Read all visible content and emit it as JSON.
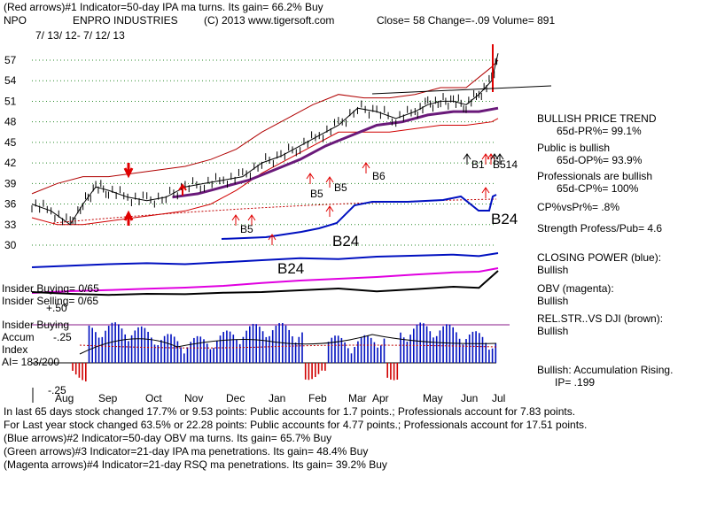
{
  "header": {
    "line1": "(Red arrows)#1 Indicator=50-day IPA ma turns.  Its gain= 66.2% Buy",
    "ticker": "NPO",
    "company": "ENPRO INDUSTRIES",
    "copyright": "(C) 2013 www.tigersoft.com",
    "quote": "Close=  58  Change=-.09 Volume= 891",
    "date_range": "7/ 13/ 12-  7/ 12/ 13"
  },
  "side_panel": {
    "trend_title": "BULLISH PRICE TREND",
    "pr": "65d-PR%= 99.1%",
    "public": "Public is bullish",
    "op": "65d-OP%= 93.9%",
    "pros": "Professionals are bullish",
    "cp": "65d-CP%= 100%",
    "cpvspr": "CP%vsPr%=  .8%",
    "strength": "Strength Profess/Pub= 4.6",
    "closing_power": "CLOSING POWER (blue):",
    "closing_power_val": "Bullish",
    "obv": "OBV (magenta):",
    "obv_val": "Bullish",
    "relstr": "REL.STR..VS DJI (brown):",
    "relstr_val": "Bullish",
    "accum": "Bullish: Accumulation Rising.",
    "ip": "IP=  .199"
  },
  "panel_labels": {
    "insider_buying": "Insider Buying= 0/65",
    "insider_selling": "Insider Selling= 0/65",
    "plus50": "+.50",
    "insider_buying2": "Insider Buying",
    "accum": "Accum",
    "minus25_top": "-.25",
    "index": "Index",
    "ai": "AI= 183/200",
    "minus25_bottom": "-.25"
  },
  "footer": {
    "line1": "In last 65 days stock changed  17.7% or  9.53 points:  Public accounts for  1.7 points.;  Professionals account for  7.83 points.",
    "line2": "For Last year stock changed  63.5% or  22.28 points:  Public accounts for  4.77 points.;  Professionals account for  17.51 points.",
    "line3": "(Blue arrows)#2 Indicator=50-day OBV ma turns.  Its gain= 65.7% Buy",
    "line4": "(Green arrows)#3 Indicator=21-day IPA ma penetrations.  Its gain= 48.4% Buy",
    "line5": "(Magenta arrows)#4 Indicator=21-day RSQ ma penetrations.  Its gain= 39.2% Buy"
  },
  "chart_data": {
    "type": "line",
    "title": "NPO ENPRO INDUSTRIES",
    "y_ticks": [
      57,
      54,
      51,
      48,
      45,
      42,
      39,
      36,
      33,
      30
    ],
    "ylim": [
      30,
      57
    ],
    "x_labels": [
      "Aug",
      "Sep",
      "Oct",
      "Nov",
      "Dec",
      "Jan",
      "Feb",
      "Mar",
      "Apr",
      "May",
      "Jun",
      "Jul"
    ],
    "series": [
      {
        "name": "price",
        "x": [
          0,
          3,
          6,
          8,
          10,
          12,
          15,
          18,
          21,
          24,
          27,
          30,
          33,
          36,
          39,
          42,
          45,
          48,
          51,
          54,
          57,
          60,
          62,
          64,
          66,
          68,
          70,
          72,
          73
        ],
        "values": [
          36,
          35,
          33,
          36,
          38.5,
          38,
          37,
          36.5,
          37,
          38.5,
          39,
          39.5,
          40,
          42,
          43,
          44.5,
          46,
          47.5,
          50,
          49.5,
          48.5,
          49.5,
          50.5,
          51,
          51,
          50.5,
          52,
          54,
          58
        ]
      },
      {
        "name": "upper_band",
        "x": [
          0,
          4,
          8,
          12,
          16,
          20,
          24,
          28,
          32,
          36,
          40,
          44,
          48,
          52,
          56,
          60,
          64,
          68,
          72,
          73
        ],
        "values": [
          37.5,
          39,
          40,
          40,
          40.5,
          41,
          41.5,
          42.5,
          44,
          46.5,
          48.5,
          50.5,
          52,
          51.5,
          51.5,
          52,
          53,
          53,
          56,
          57
        ]
      },
      {
        "name": "lower_band",
        "x": [
          0,
          4,
          8,
          12,
          16,
          20,
          24,
          28,
          32,
          36,
          40,
          44,
          48,
          52,
          56,
          60,
          64,
          68,
          72,
          73
        ],
        "values": [
          34,
          33,
          33,
          33.5,
          34,
          34.5,
          35,
          36,
          38,
          40.5,
          42.5,
          44.5,
          46.5,
          46.5,
          46.5,
          47,
          47.5,
          47.5,
          48,
          48.5
        ]
      },
      {
        "name": "ma_50",
        "x": [
          22,
          26,
          30,
          34,
          38,
          42,
          46,
          50,
          54,
          58,
          62,
          66,
          70,
          73
        ],
        "values": [
          37,
          37.5,
          38.5,
          39.5,
          41,
          42.5,
          44.5,
          46,
          47.5,
          48,
          49,
          49.5,
          49.5,
          50
        ]
      },
      {
        "name": "closing_power",
        "x": [
          0,
          6,
          12,
          18,
          24,
          30,
          36,
          42,
          48,
          54,
          60,
          66,
          70,
          73
        ],
        "values": [
          0.72,
          0.75,
          0.78,
          0.8,
          0.78,
          0.82,
          0.86,
          0.9,
          0.88,
          0.93,
          0.95,
          0.97,
          0.94,
          1.0
        ]
      },
      {
        "name": "obv",
        "x": [
          0,
          6,
          12,
          18,
          24,
          30,
          36,
          42,
          48,
          54,
          60,
          66,
          70,
          73
        ],
        "values": [
          0.1,
          0.15,
          0.18,
          0.22,
          0.25,
          0.3,
          0.38,
          0.45,
          0.5,
          0.55,
          0.62,
          0.68,
          0.7,
          0.8
        ]
      },
      {
        "name": "relative_strength",
        "x": [
          0,
          6,
          12,
          18,
          24,
          30,
          36,
          42,
          48,
          54,
          60,
          66,
          70,
          73
        ],
        "values": [
          0.2,
          0.15,
          0.12,
          0.15,
          0.14,
          0.18,
          0.2,
          0.25,
          0.3,
          0.22,
          0.28,
          0.35,
          0.32,
          0.8
        ]
      }
    ],
    "signals": [
      {
        "label": "B5",
        "x": 20,
        "y": 33.5
      },
      {
        "label": "B5",
        "x": 28,
        "y": 38.2
      },
      {
        "label": "B5",
        "x": 32,
        "y": 39.2
      },
      {
        "label": "B24",
        "x": 33,
        "y": 32
      },
      {
        "label": "B6",
        "x": 36,
        "y": 41.3
      },
      {
        "label": "B24",
        "x": 55,
        "y": 31.5
      },
      {
        "label": "B1",
        "x": 68,
        "y": 42
      },
      {
        "label": "B514",
        "x": 71,
        "y": 42
      },
      {
        "label": "B24",
        "x": 71,
        "y": 34
      }
    ]
  }
}
